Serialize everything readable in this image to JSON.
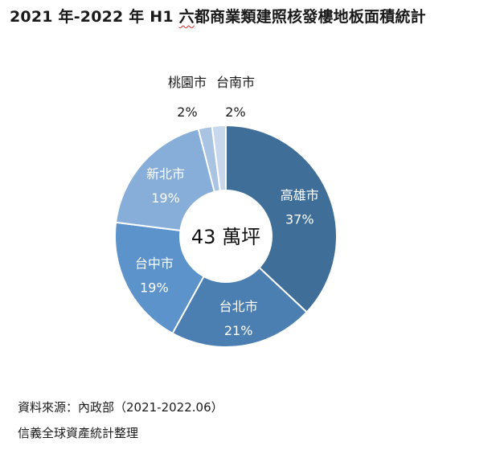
{
  "title": {
    "prefix": "2021 年-2022 年 H1 ",
    "underlined": "六",
    "suffix": "都商業類建照核發樓地板面積統計"
  },
  "center_label": "43 萬坪",
  "chart_data": {
    "type": "pie",
    "variant": "donut",
    "title": "2021 年-2022 年 H1 六都商業類建照核發樓地板面積統計",
    "total_label": "43 萬坪",
    "unit": "%",
    "slices": [
      {
        "name": "高雄市",
        "value": 37,
        "label": "37%",
        "color": "#3f6f98"
      },
      {
        "name": "台北市",
        "value": 21,
        "label": "21%",
        "color": "#4b7fb1"
      },
      {
        "name": "台中市",
        "value": 19,
        "label": "19%",
        "color": "#5c93cb"
      },
      {
        "name": "新北市",
        "value": 19,
        "label": "19%",
        "color": "#86aed9"
      },
      {
        "name": "桃園市",
        "value": 2,
        "label": "2%",
        "color": "#a9c3e2"
      },
      {
        "name": "台南市",
        "value": 2,
        "label": "2%",
        "color": "#c8d8ec"
      }
    ]
  },
  "footer": {
    "source": "資料來源：內政部（2021-2022.06）",
    "organizer": "信義全球資產統計整理"
  }
}
